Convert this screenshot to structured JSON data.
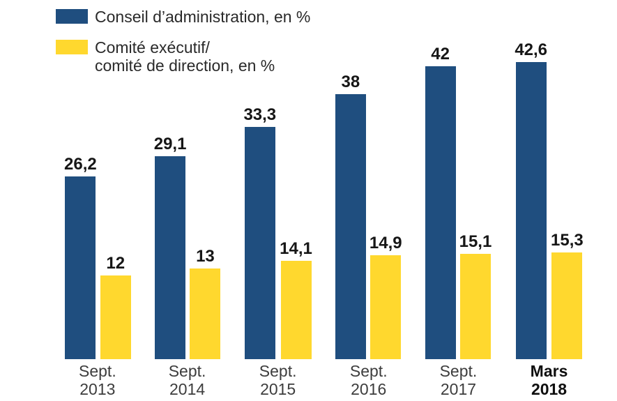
{
  "chart_data": {
    "type": "bar",
    "categories": [
      {
        "line1": "Sept.",
        "line2": "2013",
        "bold": false
      },
      {
        "line1": "Sept.",
        "line2": "2014",
        "bold": false
      },
      {
        "line1": "Sept.",
        "line2": "2015",
        "bold": false
      },
      {
        "line1": "Sept.",
        "line2": "2016",
        "bold": false
      },
      {
        "line1": "Sept.",
        "line2": "2017",
        "bold": false
      },
      {
        "line1": "Mars",
        "line2": "2018",
        "bold": true
      }
    ],
    "series": [
      {
        "name": "Conseil d’administration, en %",
        "color": "#1F4E7F",
        "values": [
          26.2,
          29.1,
          33.3,
          38,
          42,
          42.6
        ],
        "labels": [
          "26,2",
          "29,1",
          "33,3",
          "38",
          "42",
          "42,6"
        ]
      },
      {
        "name": "Comité exécutif/\ncomité de direction, en %",
        "color": "#FFD82E",
        "values": [
          12,
          13,
          14.1,
          14.9,
          15.1,
          15.3
        ],
        "labels": [
          "12",
          "13",
          "14,1",
          "14,9",
          "15,1",
          "15,3"
        ]
      }
    ],
    "ylim": [
      0,
      45
    ],
    "grid": false,
    "axis_lines": false,
    "value_labels": true,
    "legend_position": "top-left"
  },
  "legend": {
    "items": [
      {
        "label": "Conseil d’administration, en %",
        "color": "#1F4E7F"
      },
      {
        "label": "Comité exécutif/\ncomité de direction, en %",
        "color": "#FFD82E"
      }
    ]
  }
}
